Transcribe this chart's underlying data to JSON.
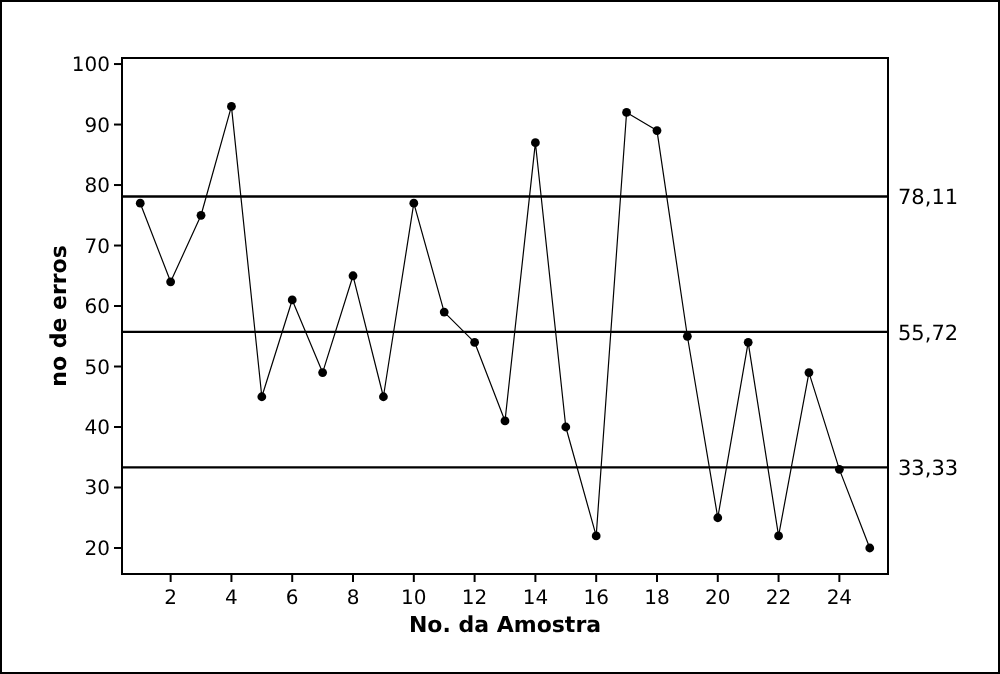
{
  "chart_data": {
    "type": "line",
    "xlabel": "No. da Amostra",
    "ylabel": "no de erros",
    "x": [
      1,
      2,
      3,
      4,
      5,
      6,
      7,
      8,
      9,
      10,
      11,
      12,
      13,
      14,
      15,
      16,
      17,
      18,
      19,
      20,
      21,
      22,
      23,
      24,
      25
    ],
    "series": [
      {
        "color": "#000000",
        "values": [
          77,
          64,
          75,
          93,
          45,
          61,
          49,
          65,
          45,
          77,
          59,
          54,
          41,
          87,
          40,
          22,
          92,
          89,
          55,
          25,
          54,
          22,
          49,
          33,
          20
        ]
      }
    ],
    "xlim": [
      0.4,
      25.6
    ],
    "xticks": [
      2,
      4,
      6,
      8,
      10,
      12,
      14,
      16,
      18,
      20,
      22,
      24
    ],
    "ylim": [
      15.7,
      101
    ],
    "yticks": [
      20,
      30,
      40,
      50,
      60,
      70,
      80,
      90,
      100
    ],
    "ref_lines": [
      {
        "axis": "y",
        "value": 78.11,
        "label": "78,11"
      },
      {
        "axis": "y",
        "value": 55.72,
        "label": "55,72"
      },
      {
        "axis": "y",
        "value": 33.33,
        "label": "33,33"
      }
    ],
    "marker": "circle",
    "line_style": "solid",
    "grid": false
  }
}
